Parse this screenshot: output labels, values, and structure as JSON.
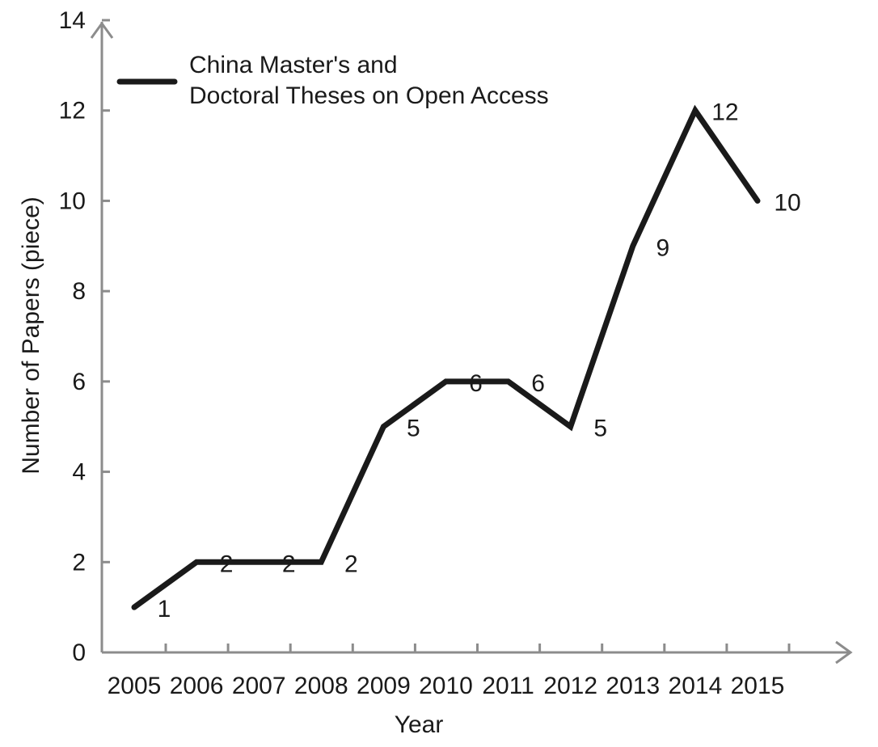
{
  "chart_data": {
    "type": "line",
    "title": "",
    "xlabel": "Year",
    "ylabel": "Number of Papers (piece)",
    "ylim": [
      0,
      14
    ],
    "yticks": [
      "0",
      "2",
      "4",
      "6",
      "8",
      "10",
      "12",
      "14"
    ],
    "categories": [
      "2005",
      "2006",
      "2007",
      "2008",
      "2009",
      "2010",
      "2011",
      "2012",
      "2013",
      "2014",
      "2015"
    ],
    "series": [
      {
        "name": "China Master's and Doctoral Theses on Open Access",
        "legend_lines": [
          "China Master's and",
          "Doctoral Theses on Open Access"
        ],
        "values": [
          1,
          2,
          2,
          2,
          5,
          6,
          6,
          5,
          9,
          12,
          10
        ],
        "labels": [
          "1",
          "2",
          "2",
          "2",
          "5",
          "6",
          "6",
          "5",
          "9",
          "12",
          "10"
        ],
        "color": "#1a1a1a"
      }
    ],
    "grid": false,
    "legend_position": "top-left",
    "axis_color": "#8c8c8c"
  }
}
